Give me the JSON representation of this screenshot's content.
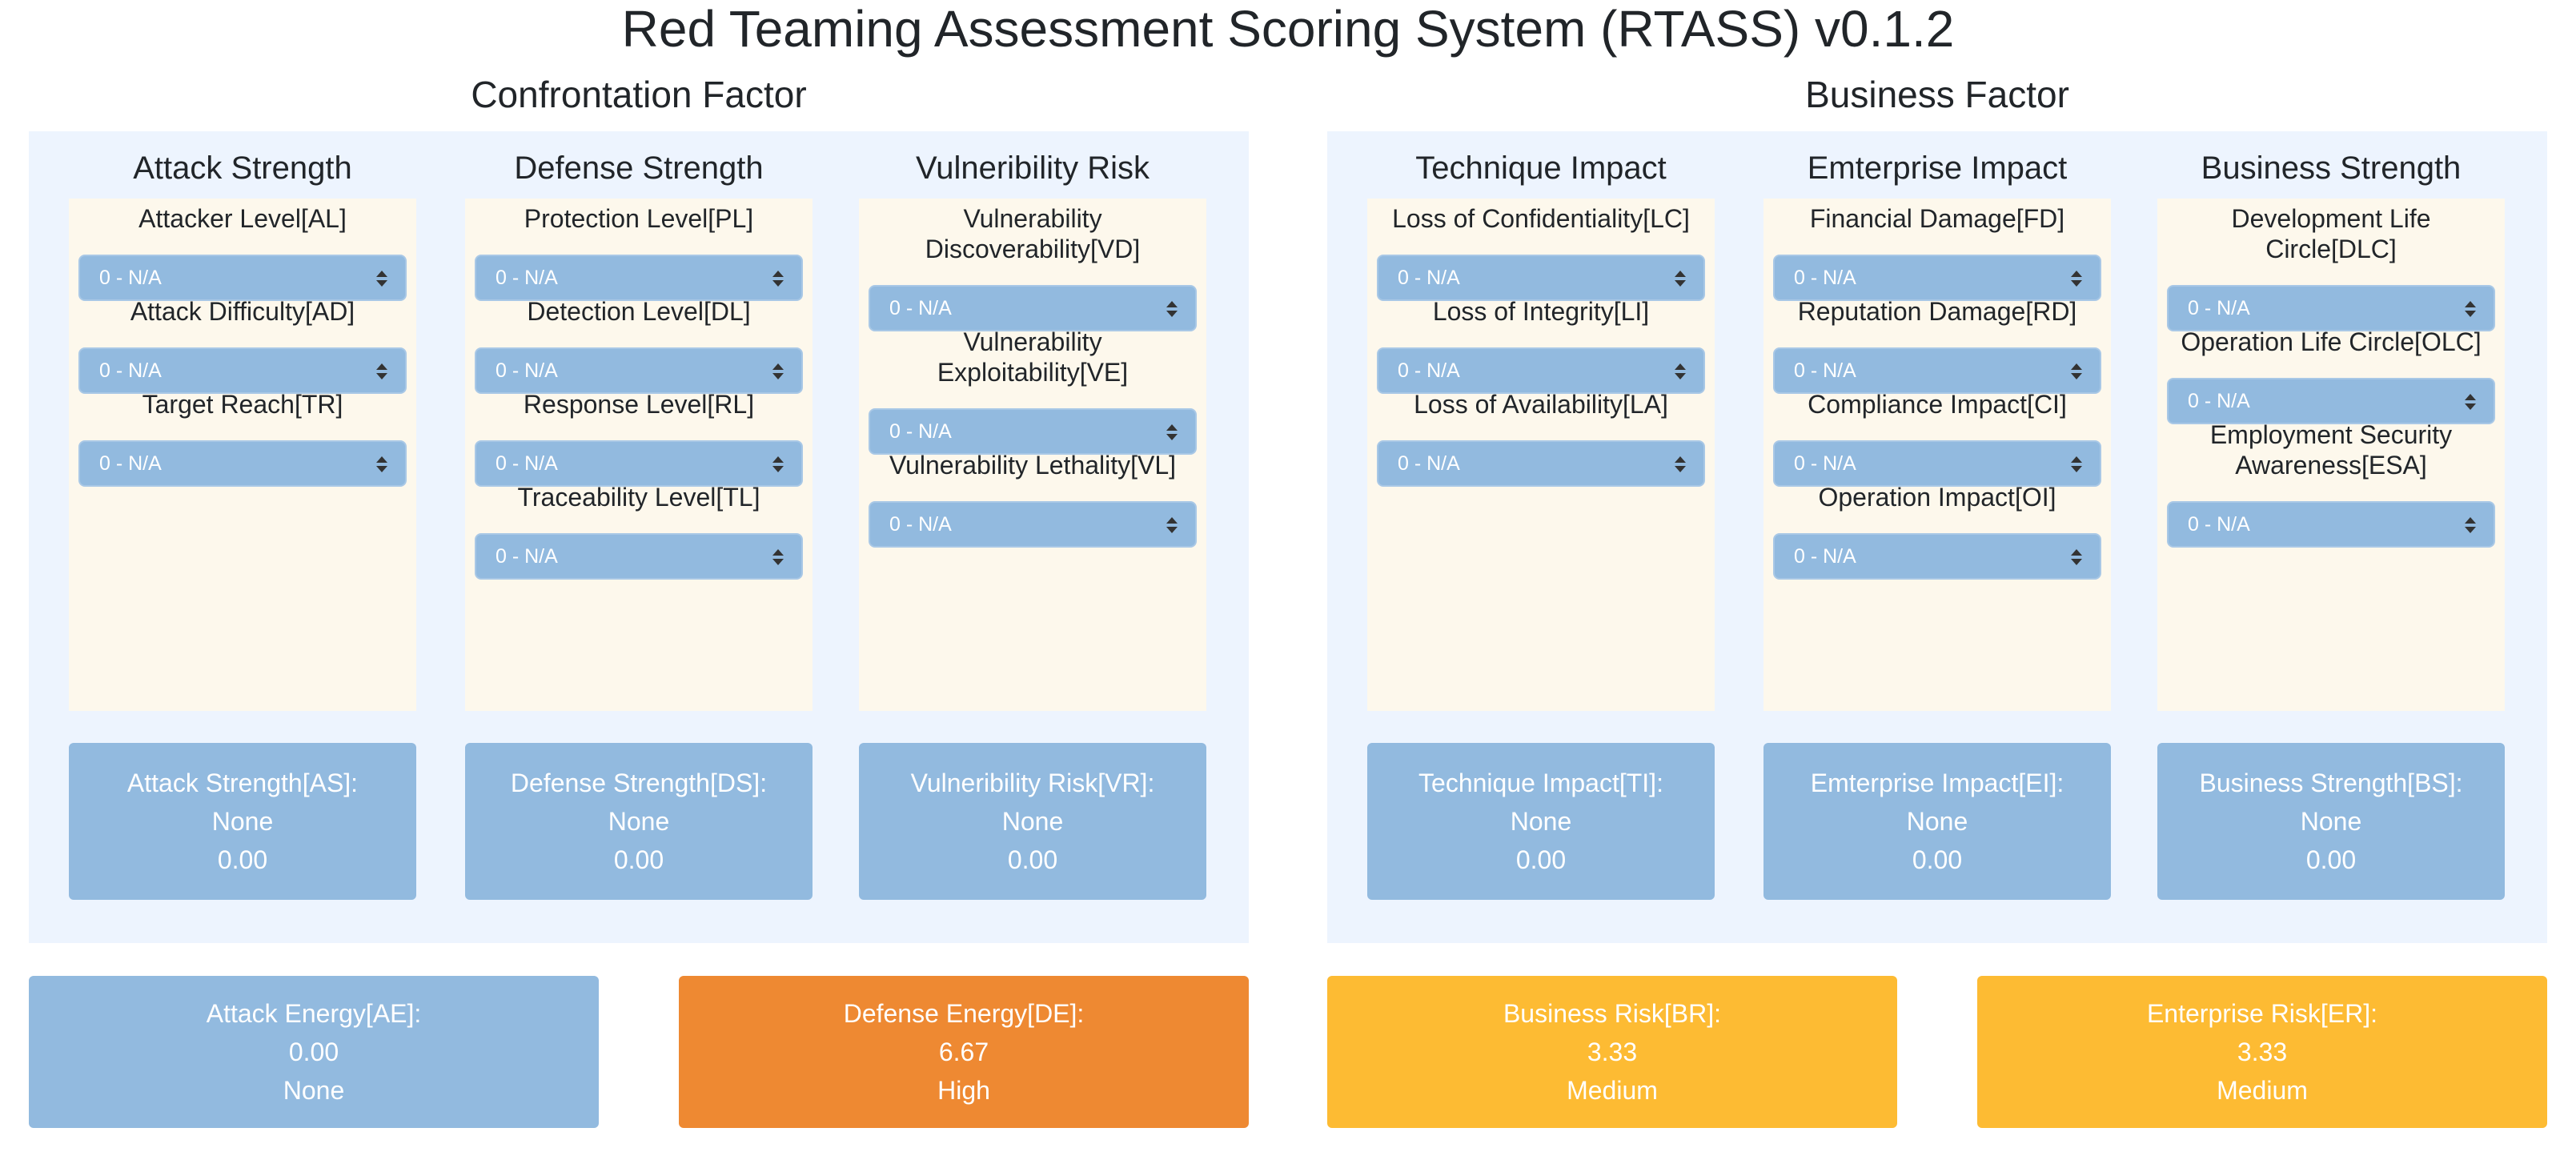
{
  "app": {
    "title": "Red Teaming Assessment Scoring System (RTASS) v0.1.2"
  },
  "factors": {
    "confrontation": {
      "title": "Confrontation Factor",
      "columns": [
        {
          "title": "Attack Strength",
          "metrics": [
            {
              "label": "Attacker Level[AL]",
              "value": "0 - N/A"
            },
            {
              "label": "Attack Difficulty[AD]",
              "value": "0 - N/A"
            },
            {
              "label": "Target Reach[TR]",
              "value": "0 - N/A"
            }
          ],
          "result": {
            "label": "Attack Strength[AS]:",
            "level": "None",
            "score": "0.00"
          }
        },
        {
          "title": "Defense Strength",
          "metrics": [
            {
              "label": "Protection Level[PL]",
              "value": "0 - N/A"
            },
            {
              "label": "Detection Level[DL]",
              "value": "0 - N/A"
            },
            {
              "label": "Response Level[RL]",
              "value": "0 - N/A"
            },
            {
              "label": "Traceability Level[TL]",
              "value": "0 - N/A"
            }
          ],
          "result": {
            "label": "Defense Strength[DS]:",
            "level": "None",
            "score": "0.00"
          }
        },
        {
          "title": "Vulneribility Risk",
          "metrics": [
            {
              "label": "Vulnerability Discoverability[VD]",
              "value": "0 - N/A"
            },
            {
              "label": "Vulnerability Exploitability[VE]",
              "value": "0 - N/A"
            },
            {
              "label": "Vulnerability Lethality[VL]",
              "value": "0 - N/A"
            }
          ],
          "result": {
            "label": "Vulneribility Risk[VR]:",
            "level": "None",
            "score": "0.00"
          }
        }
      ]
    },
    "business": {
      "title": "Business Factor",
      "columns": [
        {
          "title": "Technique Impact",
          "metrics": [
            {
              "label": "Loss of Confidentiality[LC]",
              "value": "0 - N/A"
            },
            {
              "label": "Loss of Integrity[LI]",
              "value": "0 - N/A"
            },
            {
              "label": "Loss of Availability[LA]",
              "value": "0 - N/A"
            }
          ],
          "result": {
            "label": "Technique Impact[TI]:",
            "level": "None",
            "score": "0.00"
          }
        },
        {
          "title": "Emterprise Impact",
          "metrics": [
            {
              "label": "Financial Damage[FD]",
              "value": "0 - N/A"
            },
            {
              "label": "Reputation Damage[RD]",
              "value": "0 - N/A"
            },
            {
              "label": "Compliance Impact[CI]",
              "value": "0 - N/A"
            },
            {
              "label": "Operation Impact[OI]",
              "value": "0 - N/A"
            }
          ],
          "result": {
            "label": "Emterprise Impact[EI]:",
            "level": "None",
            "score": "0.00"
          }
        },
        {
          "title": "Business Strength",
          "metrics": [
            {
              "label": "Development Life Circle[DLC]",
              "value": "0 - N/A"
            },
            {
              "label": "Operation Life Circle[OLC]",
              "value": "0 - N/A"
            },
            {
              "label": "Employment Security Awareness[ESA]",
              "value": "0 - N/A"
            }
          ],
          "result": {
            "label": "Business Strength[BS]:",
            "level": "None",
            "score": "0.00"
          }
        }
      ]
    }
  },
  "summary": [
    {
      "label": "Attack Energy[AE]:",
      "line2": "0.00",
      "line3": "None",
      "color": "#92badf"
    },
    {
      "label": "Defense Energy[DE]:",
      "line2": "6.67",
      "line3": "High",
      "color": "#ee8932"
    },
    {
      "label": "Business Risk[BR]:",
      "line2": "3.33",
      "line3": "Medium",
      "color": "#fdbb33"
    },
    {
      "label": "Enterprise Risk[ER]:",
      "line2": "3.33",
      "line3": "Medium",
      "color": "#fdbb33"
    }
  ],
  "icons": {
    "select_caret": "sort-caret-icon"
  }
}
